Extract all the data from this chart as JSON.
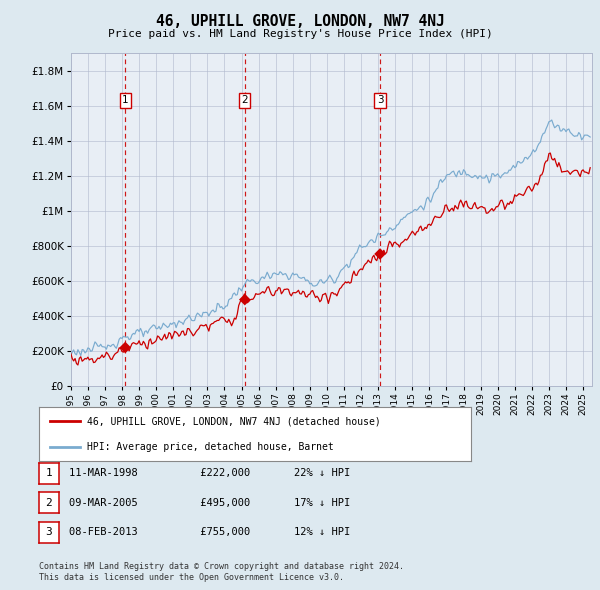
{
  "title": "46, UPHILL GROVE, LONDON, NW7 4NJ",
  "subtitle": "Price paid vs. HM Land Registry's House Price Index (HPI)",
  "legend_red": "46, UPHILL GROVE, LONDON, NW7 4NJ (detached house)",
  "legend_blue": "HPI: Average price, detached house, Barnet",
  "footer1": "Contains HM Land Registry data © Crown copyright and database right 2024.",
  "footer2": "This data is licensed under the Open Government Licence v3.0.",
  "sales": [
    {
      "num": 1,
      "date": "11-MAR-1998",
      "price": 222000,
      "pct": "22%",
      "year": 1998.19
    },
    {
      "num": 2,
      "date": "09-MAR-2005",
      "price": 495000,
      "pct": "17%",
      "year": 2005.19
    },
    {
      "num": 3,
      "date": "08-FEB-2013",
      "price": 755000,
      "pct": "12%",
      "year": 2013.11
    }
  ],
  "sale_color": "#cc0000",
  "hpi_color": "#7aabcf",
  "background_color": "#dde9f0",
  "plot_bg": "#e8eef5",
  "ylim": [
    0,
    1900000
  ],
  "xlim_start": 1995.0,
  "xlim_end": 2025.5,
  "hpi_anchors_years": [
    1995.0,
    1996.0,
    1997.0,
    1998.19,
    1999.5,
    2001.0,
    2002.5,
    2004.0,
    2005.19,
    2007.0,
    2008.0,
    2009.3,
    2010.5,
    2012.0,
    2013.11,
    2014.5,
    2016.0,
    2017.0,
    2018.0,
    2019.5,
    2020.5,
    2021.5,
    2022.5,
    2023.0,
    2023.5,
    2024.0,
    2025.0,
    2025.4
  ],
  "hpi_anchors_vals": [
    195000,
    207000,
    225000,
    285000,
    310000,
    360000,
    400000,
    460000,
    585000,
    635000,
    640000,
    580000,
    620000,
    790000,
    858000,
    960000,
    1060000,
    1200000,
    1230000,
    1185000,
    1210000,
    1290000,
    1390000,
    1510000,
    1485000,
    1460000,
    1430000,
    1430000
  ],
  "prop_anchors_years": [
    1995.0,
    1996.5,
    1997.5,
    1998.19,
    1998.5,
    2000.0,
    2001.5,
    2003.0,
    2004.5,
    2005.19,
    2006.5,
    2008.0,
    2009.3,
    2010.5,
    2012.0,
    2013.11,
    2014.5,
    2016.0,
    2017.0,
    2018.0,
    2019.5,
    2020.5,
    2021.5,
    2022.5,
    2023.0,
    2023.5,
    2024.0,
    2025.0,
    2025.4
  ],
  "prop_anchors_vals": [
    150000,
    163000,
    180000,
    222000,
    232000,
    268000,
    300000,
    340000,
    390000,
    495000,
    540000,
    548000,
    505000,
    530000,
    660000,
    755000,
    830000,
    920000,
    1020000,
    1040000,
    1010000,
    1030000,
    1100000,
    1180000,
    1320000,
    1250000,
    1230000,
    1210000,
    1210000
  ]
}
